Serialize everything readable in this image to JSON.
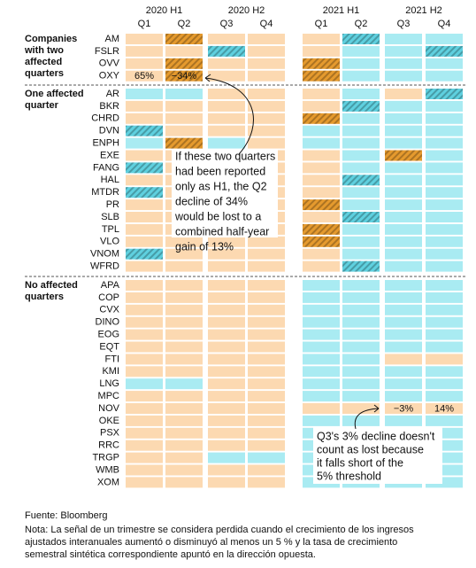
{
  "chart_data": {
    "type": "grid",
    "periods": [
      {
        "label": "2020 H1",
        "quarters": [
          "Q1",
          "Q2"
        ]
      },
      {
        "label": "2020 H2",
        "quarters": [
          "Q3",
          "Q4"
        ]
      },
      {
        "label": "2021 H1",
        "quarters": [
          "Q1",
          "Q2"
        ]
      },
      {
        "label": "2021 H2",
        "quarters": [
          "Q3",
          "Q4"
        ]
      }
    ],
    "groups": [
      {
        "label": [
          "Companies",
          "with two",
          "affected",
          "quarters"
        ],
        "rows": [
          {
            "name": "AM",
            "fills": [
              "#fcd9b1",
              "#e59a2e",
              "#fcd9b1",
              "#fcd9b1",
              "#fcd9b1",
              "#5fd0df",
              "#a9ebf2",
              "#a9ebf2"
            ],
            "hatched": [
              1,
              5
            ]
          },
          {
            "name": "FSLR",
            "fills": [
              "#fcd9b1",
              "#fcd9b1",
              "#5fd0df",
              "#fcd9b1",
              "#fcd9b1",
              "#a9ebf2",
              "#a9ebf2",
              "#5fd0df"
            ],
            "hatched": [
              2,
              7
            ]
          },
          {
            "name": "OVV",
            "fills": [
              "#fcd9b1",
              "#e59a2e",
              "#fcd9b1",
              "#fcd9b1",
              "#e59a2e",
              "#a9ebf2",
              "#a9ebf2",
              "#a9ebf2"
            ],
            "hatched": [
              1,
              4
            ]
          },
          {
            "name": "OXY",
            "fills": [
              "#fcd9b1",
              "#e59a2e",
              "#fcd9b1",
              "#fcd9b1",
              "#e59a2e",
              "#a9ebf2",
              "#a9ebf2",
              "#a9ebf2"
            ],
            "hatched": [
              1,
              4
            ],
            "values": [
              65,
              -34,
              null,
              null,
              null,
              null,
              null,
              null
            ],
            "value_labels": [
              "65%",
              "−34%",
              null,
              null,
              null,
              null,
              null,
              null
            ]
          }
        ]
      },
      {
        "label": [
          "One affected",
          "quarter"
        ],
        "rows": [
          {
            "name": "AR",
            "fills": [
              "#a9ebf2",
              "#a9ebf2",
              "#fcd9b1",
              "#fcd9b1",
              "#fcd9b1",
              "#a9ebf2",
              "#fcd9b1",
              "#5fd0df"
            ],
            "hatched": [
              7
            ]
          },
          {
            "name": "BKR",
            "fills": [
              "#fcd9b1",
              "#fcd9b1",
              "#fcd9b1",
              "#fcd9b1",
              "#fcd9b1",
              "#5fd0df",
              "#a9ebf2",
              "#a9ebf2"
            ],
            "hatched": [
              5
            ]
          },
          {
            "name": "CHRD",
            "fills": [
              "#fcd9b1",
              "#fcd9b1",
              "#fcd9b1",
              "#fcd9b1",
              "#e59a2e",
              "#a9ebf2",
              "#a9ebf2",
              "#a9ebf2"
            ],
            "hatched": [
              4
            ]
          },
          {
            "name": "DVN",
            "fills": [
              "#5fd0df",
              "#fcd9b1",
              "#fcd9b1",
              "#fcd9b1",
              "#a9ebf2",
              "#a9ebf2",
              "#a9ebf2",
              "#a9ebf2"
            ],
            "hatched": [
              0
            ]
          },
          {
            "name": "ENPH",
            "fills": [
              "#a9ebf2",
              "#e59a2e",
              "#a9ebf2",
              "#fcd9b1",
              "#a9ebf2",
              "#a9ebf2",
              "#a9ebf2",
              "#a9ebf2"
            ],
            "hatched": [
              1
            ]
          },
          {
            "name": "EXE",
            "fills": [
              "#fcd9b1",
              "#fcd9b1",
              "#fcd9b1",
              "#fcd9b1",
              "#fcd9b1",
              "#a9ebf2",
              "#e59a2e",
              "#a9ebf2"
            ],
            "hatched": [
              6
            ]
          },
          {
            "name": "FANG",
            "fills": [
              "#5fd0df",
              "#fcd9b1",
              "#fcd9b1",
              "#fcd9b1",
              "#fcd9b1",
              "#a9ebf2",
              "#a9ebf2",
              "#a9ebf2"
            ],
            "hatched": [
              0
            ]
          },
          {
            "name": "HAL",
            "fills": [
              "#fcd9b1",
              "#fcd9b1",
              "#fcd9b1",
              "#fcd9b1",
              "#fcd9b1",
              "#5fd0df",
              "#a9ebf2",
              "#a9ebf2"
            ],
            "hatched": [
              5
            ]
          },
          {
            "name": "MTDR",
            "fills": [
              "#5fd0df",
              "#fcd9b1",
              "#fcd9b1",
              "#fcd9b1",
              "#fcd9b1",
              "#a9ebf2",
              "#a9ebf2",
              "#a9ebf2"
            ],
            "hatched": [
              0
            ]
          },
          {
            "name": "PR",
            "fills": [
              "#fcd9b1",
              "#fcd9b1",
              "#fcd9b1",
              "#fcd9b1",
              "#e59a2e",
              "#a9ebf2",
              "#a9ebf2",
              "#a9ebf2"
            ],
            "hatched": [
              4
            ]
          },
          {
            "name": "SLB",
            "fills": [
              "#fcd9b1",
              "#fcd9b1",
              "#fcd9b1",
              "#fcd9b1",
              "#fcd9b1",
              "#5fd0df",
              "#a9ebf2",
              "#a9ebf2"
            ],
            "hatched": [
              5
            ]
          },
          {
            "name": "TPL",
            "fills": [
              "#fcd9b1",
              "#fcd9b1",
              "#fcd9b1",
              "#fcd9b1",
              "#e59a2e",
              "#a9ebf2",
              "#a9ebf2",
              "#a9ebf2"
            ],
            "hatched": [
              4
            ]
          },
          {
            "name": "VLO",
            "fills": [
              "#fcd9b1",
              "#fcd9b1",
              "#fcd9b1",
              "#fcd9b1",
              "#e59a2e",
              "#a9ebf2",
              "#a9ebf2",
              "#a9ebf2"
            ],
            "hatched": [
              4
            ]
          },
          {
            "name": "VNOM",
            "fills": [
              "#5fd0df",
              "#fcd9b1",
              "#fcd9b1",
              "#fcd9b1",
              "#fcd9b1",
              "#a9ebf2",
              "#a9ebf2",
              "#a9ebf2"
            ],
            "hatched": [
              0
            ]
          },
          {
            "name": "WFRD",
            "fills": [
              "#fcd9b1",
              "#fcd9b1",
              "#fcd9b1",
              "#fcd9b1",
              "#fcd9b1",
              "#5fd0df",
              "#a9ebf2",
              "#a9ebf2"
            ],
            "hatched": [
              5
            ]
          }
        ]
      },
      {
        "label": [
          "No affected",
          "quarters"
        ],
        "rows": [
          {
            "name": "APA",
            "fills": [
              "#fcd9b1",
              "#fcd9b1",
              "#fcd9b1",
              "#fcd9b1",
              "#a9ebf2",
              "#a9ebf2",
              "#a9ebf2",
              "#a9ebf2"
            ],
            "hatched": []
          },
          {
            "name": "COP",
            "fills": [
              "#fcd9b1",
              "#fcd9b1",
              "#fcd9b1",
              "#fcd9b1",
              "#a9ebf2",
              "#a9ebf2",
              "#a9ebf2",
              "#a9ebf2"
            ],
            "hatched": []
          },
          {
            "name": "CVX",
            "fills": [
              "#fcd9b1",
              "#fcd9b1",
              "#fcd9b1",
              "#fcd9b1",
              "#a9ebf2",
              "#a9ebf2",
              "#a9ebf2",
              "#a9ebf2"
            ],
            "hatched": []
          },
          {
            "name": "DINO",
            "fills": [
              "#fcd9b1",
              "#fcd9b1",
              "#fcd9b1",
              "#fcd9b1",
              "#a9ebf2",
              "#a9ebf2",
              "#a9ebf2",
              "#a9ebf2"
            ],
            "hatched": []
          },
          {
            "name": "EOG",
            "fills": [
              "#fcd9b1",
              "#fcd9b1",
              "#fcd9b1",
              "#fcd9b1",
              "#a9ebf2",
              "#a9ebf2",
              "#a9ebf2",
              "#a9ebf2"
            ],
            "hatched": []
          },
          {
            "name": "EQT",
            "fills": [
              "#fcd9b1",
              "#fcd9b1",
              "#fcd9b1",
              "#fcd9b1",
              "#a9ebf2",
              "#a9ebf2",
              "#a9ebf2",
              "#a9ebf2"
            ],
            "hatched": []
          },
          {
            "name": "FTI",
            "fills": [
              "#fcd9b1",
              "#fcd9b1",
              "#fcd9b1",
              "#fcd9b1",
              "#a9ebf2",
              "#a9ebf2",
              "#fcd9b1",
              "#fcd9b1"
            ],
            "hatched": []
          },
          {
            "name": "KMI",
            "fills": [
              "#fcd9b1",
              "#fcd9b1",
              "#fcd9b1",
              "#fcd9b1",
              "#a9ebf2",
              "#a9ebf2",
              "#a9ebf2",
              "#a9ebf2"
            ],
            "hatched": []
          },
          {
            "name": "LNG",
            "fills": [
              "#a9ebf2",
              "#a9ebf2",
              "#fcd9b1",
              "#fcd9b1",
              "#a9ebf2",
              "#a9ebf2",
              "#a9ebf2",
              "#a9ebf2"
            ],
            "hatched": []
          },
          {
            "name": "MPC",
            "fills": [
              "#fcd9b1",
              "#fcd9b1",
              "#fcd9b1",
              "#fcd9b1",
              "#a9ebf2",
              "#a9ebf2",
              "#a9ebf2",
              "#a9ebf2"
            ],
            "hatched": []
          },
          {
            "name": "NOV",
            "fills": [
              "#fcd9b1",
              "#fcd9b1",
              "#fcd9b1",
              "#fcd9b1",
              "#fcd9b1",
              "#fcd9b1",
              "#fcd9b1",
              "#fcd9b1"
            ],
            "hatched": [],
            "values": [
              null,
              null,
              null,
              null,
              null,
              null,
              -3,
              14
            ],
            "value_labels": [
              null,
              null,
              null,
              null,
              null,
              null,
              "−3%",
              "14%"
            ]
          },
          {
            "name": "OKE",
            "fills": [
              "#fcd9b1",
              "#fcd9b1",
              "#fcd9b1",
              "#fcd9b1",
              "#a9ebf2",
              "#a9ebf2",
              "#a9ebf2",
              "#a9ebf2"
            ],
            "hatched": []
          },
          {
            "name": "PSX",
            "fills": [
              "#fcd9b1",
              "#fcd9b1",
              "#fcd9b1",
              "#fcd9b1",
              "#a9ebf2",
              "#a9ebf2",
              "#a9ebf2",
              "#a9ebf2"
            ],
            "hatched": []
          },
          {
            "name": "RRC",
            "fills": [
              "#fcd9b1",
              "#fcd9b1",
              "#fcd9b1",
              "#fcd9b1",
              "#a9ebf2",
              "#a9ebf2",
              "#a9ebf2",
              "#a9ebf2"
            ],
            "hatched": []
          },
          {
            "name": "TRGP",
            "fills": [
              "#fcd9b1",
              "#fcd9b1",
              "#a9ebf2",
              "#a9ebf2",
              "#a9ebf2",
              "#a9ebf2",
              "#a9ebf2",
              "#a9ebf2"
            ],
            "hatched": []
          },
          {
            "name": "WMB",
            "fills": [
              "#fcd9b1",
              "#fcd9b1",
              "#fcd9b1",
              "#fcd9b1",
              "#a9ebf2",
              "#a9ebf2",
              "#a9ebf2",
              "#a9ebf2"
            ],
            "hatched": []
          },
          {
            "name": "XOM",
            "fills": [
              "#fcd9b1",
              "#fcd9b1",
              "#fcd9b1",
              "#fcd9b1",
              "#a9ebf2",
              "#a9ebf2",
              "#a9ebf2",
              "#a9ebf2"
            ],
            "hatched": []
          }
        ]
      }
    ],
    "annotations": [
      {
        "lines": [
          "If these two quarters",
          "had been reported",
          "only as H1, the Q2",
          "decline of 34%",
          "would be lost to a",
          "combined half-year",
          "gain of 13%"
        ]
      },
      {
        "lines": [
          "Q3's 3% decline doesn't",
          "count as lost because",
          "it falls short of the",
          "5% threshold"
        ]
      }
    ],
    "source": "Fuente: Bloomberg",
    "note": [
      "Nota: La señal de un trimestre se considera perdida cuando el crecimiento de los ingresos",
      "ajustados interanuales aumentó o disminuyó al menos un 5 % y la tasa de crecimiento",
      "semestral sintética correspondiente apuntó en la dirección opuesta."
    ]
  }
}
